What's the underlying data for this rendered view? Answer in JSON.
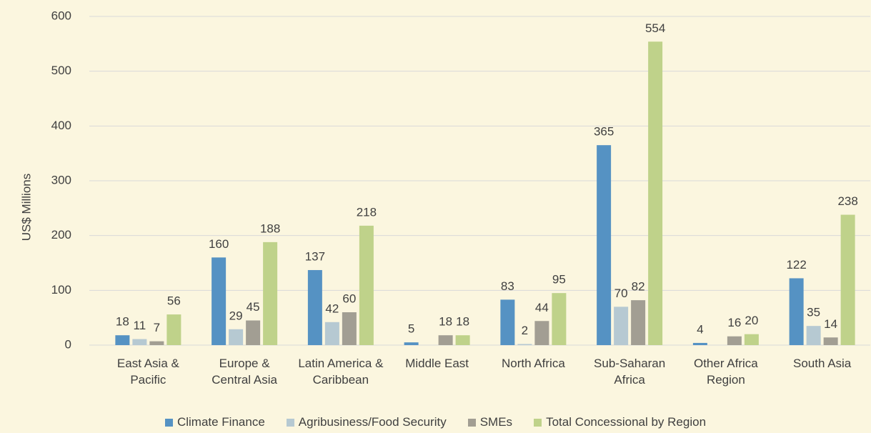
{
  "chart_data": {
    "type": "bar",
    "y_label": "US$ Millions",
    "categories": [
      "East Asia & Pacific",
      "Europe & Central Asia",
      "Latin America & Caribbean",
      "Middle East",
      "North Africa",
      "Sub-Saharan Africa",
      "Other Africa Region",
      "South Asia"
    ],
    "series": [
      {
        "name": "Climate Finance",
        "color": "#5592c3",
        "values": [
          18,
          160,
          137,
          5,
          83,
          365,
          4,
          122
        ]
      },
      {
        "name": "Agribusiness/Food Security",
        "color": "#b6c9d2",
        "values": [
          11,
          29,
          42,
          null,
          2,
          70,
          null,
          35
        ]
      },
      {
        "name": "SMEs",
        "color": "#a29e93",
        "values": [
          7,
          45,
          60,
          18,
          44,
          82,
          16,
          14
        ]
      },
      {
        "name": "Total Concessional by Region",
        "color": "#bfd28a",
        "values": [
          56,
          188,
          218,
          18,
          95,
          554,
          20,
          238
        ]
      }
    ],
    "ylim": [
      0,
      600
    ],
    "yticks": [
      0,
      100,
      200,
      300,
      400,
      500,
      600
    ],
    "grid": true,
    "legend": "bottom"
  }
}
